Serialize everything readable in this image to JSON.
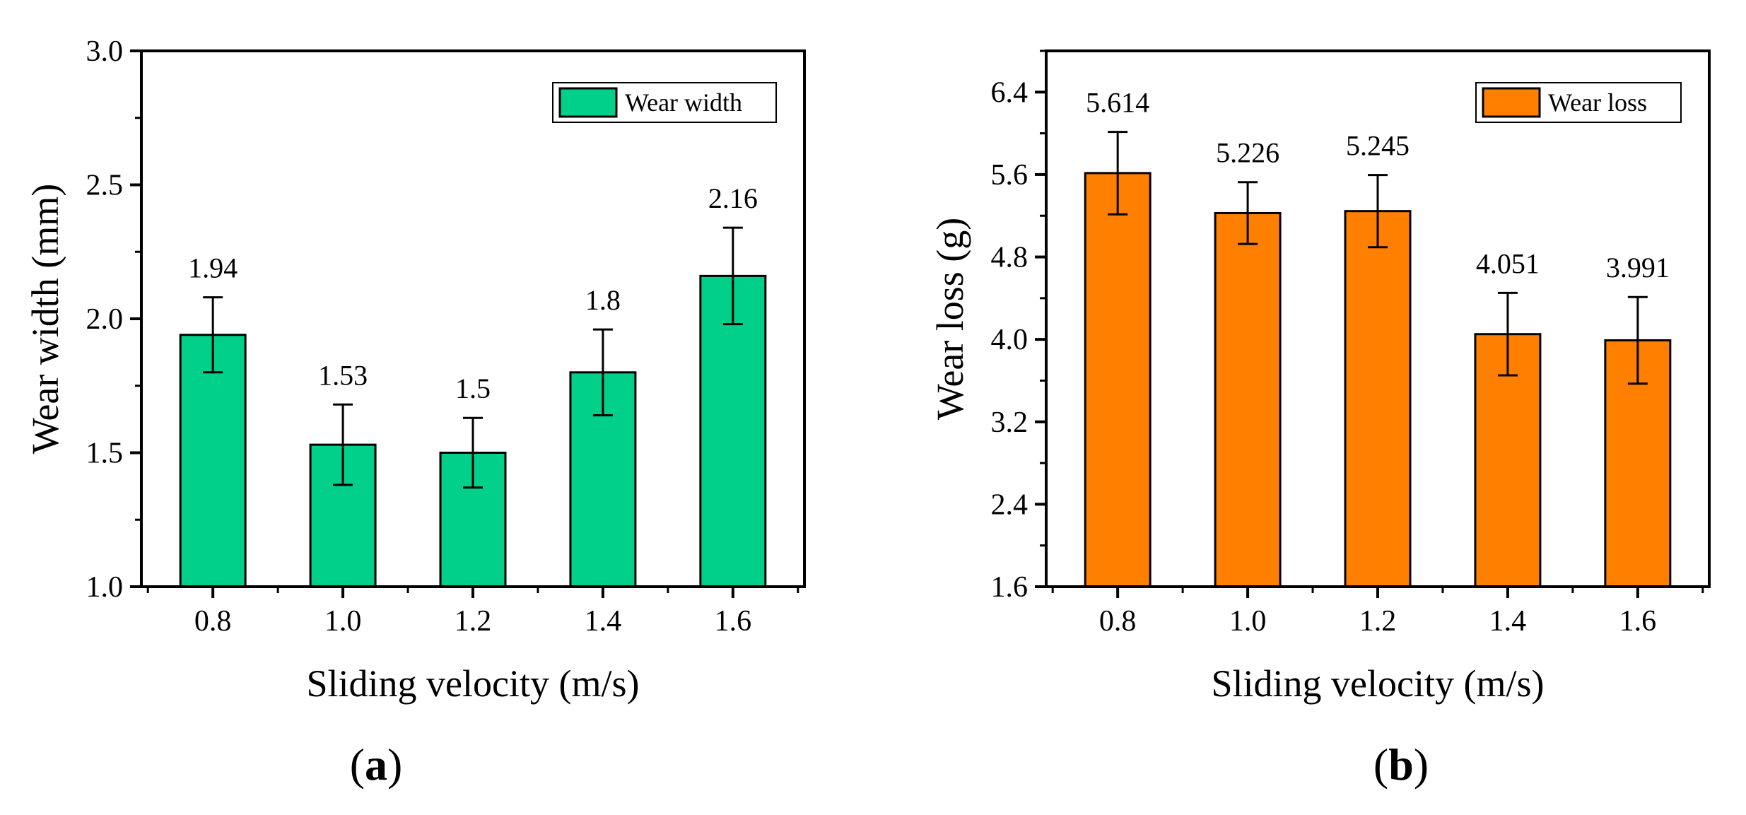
{
  "chart_data": [
    {
      "type": "bar",
      "panel": "a",
      "panel_label_open": "(",
      "panel_label_letter": "a",
      "panel_label_close": ")",
      "categories": [
        "0.8",
        "1.0",
        "1.2",
        "1.4",
        "1.6"
      ],
      "series": [
        {
          "name": "Wear width",
          "values": [
            1.94,
            1.53,
            1.5,
            1.8,
            2.16
          ],
          "value_labels": [
            "1.94",
            "1.53",
            "1.5",
            "1.8",
            "2.16"
          ],
          "error": [
            0.14,
            0.15,
            0.13,
            0.16,
            0.18
          ],
          "color": "#00d08a"
        }
      ],
      "xlabel": "Sliding velocity (m/s)",
      "ylabel": "Wear width (mm)",
      "ylim": [
        1.0,
        3.0
      ],
      "yticks": [
        1.0,
        1.5,
        2.0,
        2.5,
        3.0
      ],
      "ytick_labels": [
        "1.0",
        "1.5",
        "2.0",
        "2.5",
        "3.0"
      ],
      "minor_yticks": [
        1.25,
        1.75,
        2.25,
        2.75
      ],
      "legend_position": "top-right"
    },
    {
      "type": "bar",
      "panel": "b",
      "panel_label_open": "(",
      "panel_label_letter": "b",
      "panel_label_close": ")",
      "categories": [
        "0.8",
        "1.0",
        "1.2",
        "1.4",
        "1.6"
      ],
      "series": [
        {
          "name": "Wear loss",
          "values": [
            5.614,
            5.226,
            5.245,
            4.051,
            3.991
          ],
          "value_labels": [
            "5.614",
            "5.226",
            "5.245",
            "4.051",
            "3.991"
          ],
          "error": [
            0.4,
            0.3,
            0.35,
            0.4,
            0.42
          ],
          "color": "#ff8000"
        }
      ],
      "xlabel": "Sliding velocity (m/s)",
      "ylabel": "Wear loss (g)",
      "ylim": [
        1.6,
        6.8
      ],
      "yticks": [
        1.6,
        2.4,
        3.2,
        4.0,
        4.8,
        5.6,
        6.4
      ],
      "ytick_labels": [
        "1.6",
        "2.4",
        "3.2",
        "4.0",
        "4.8",
        "5.6",
        "6.4"
      ],
      "minor_yticks": [
        2.0,
        2.8,
        3.6,
        4.4,
        5.2,
        6.0,
        6.8
      ],
      "legend_position": "top-right"
    }
  ]
}
